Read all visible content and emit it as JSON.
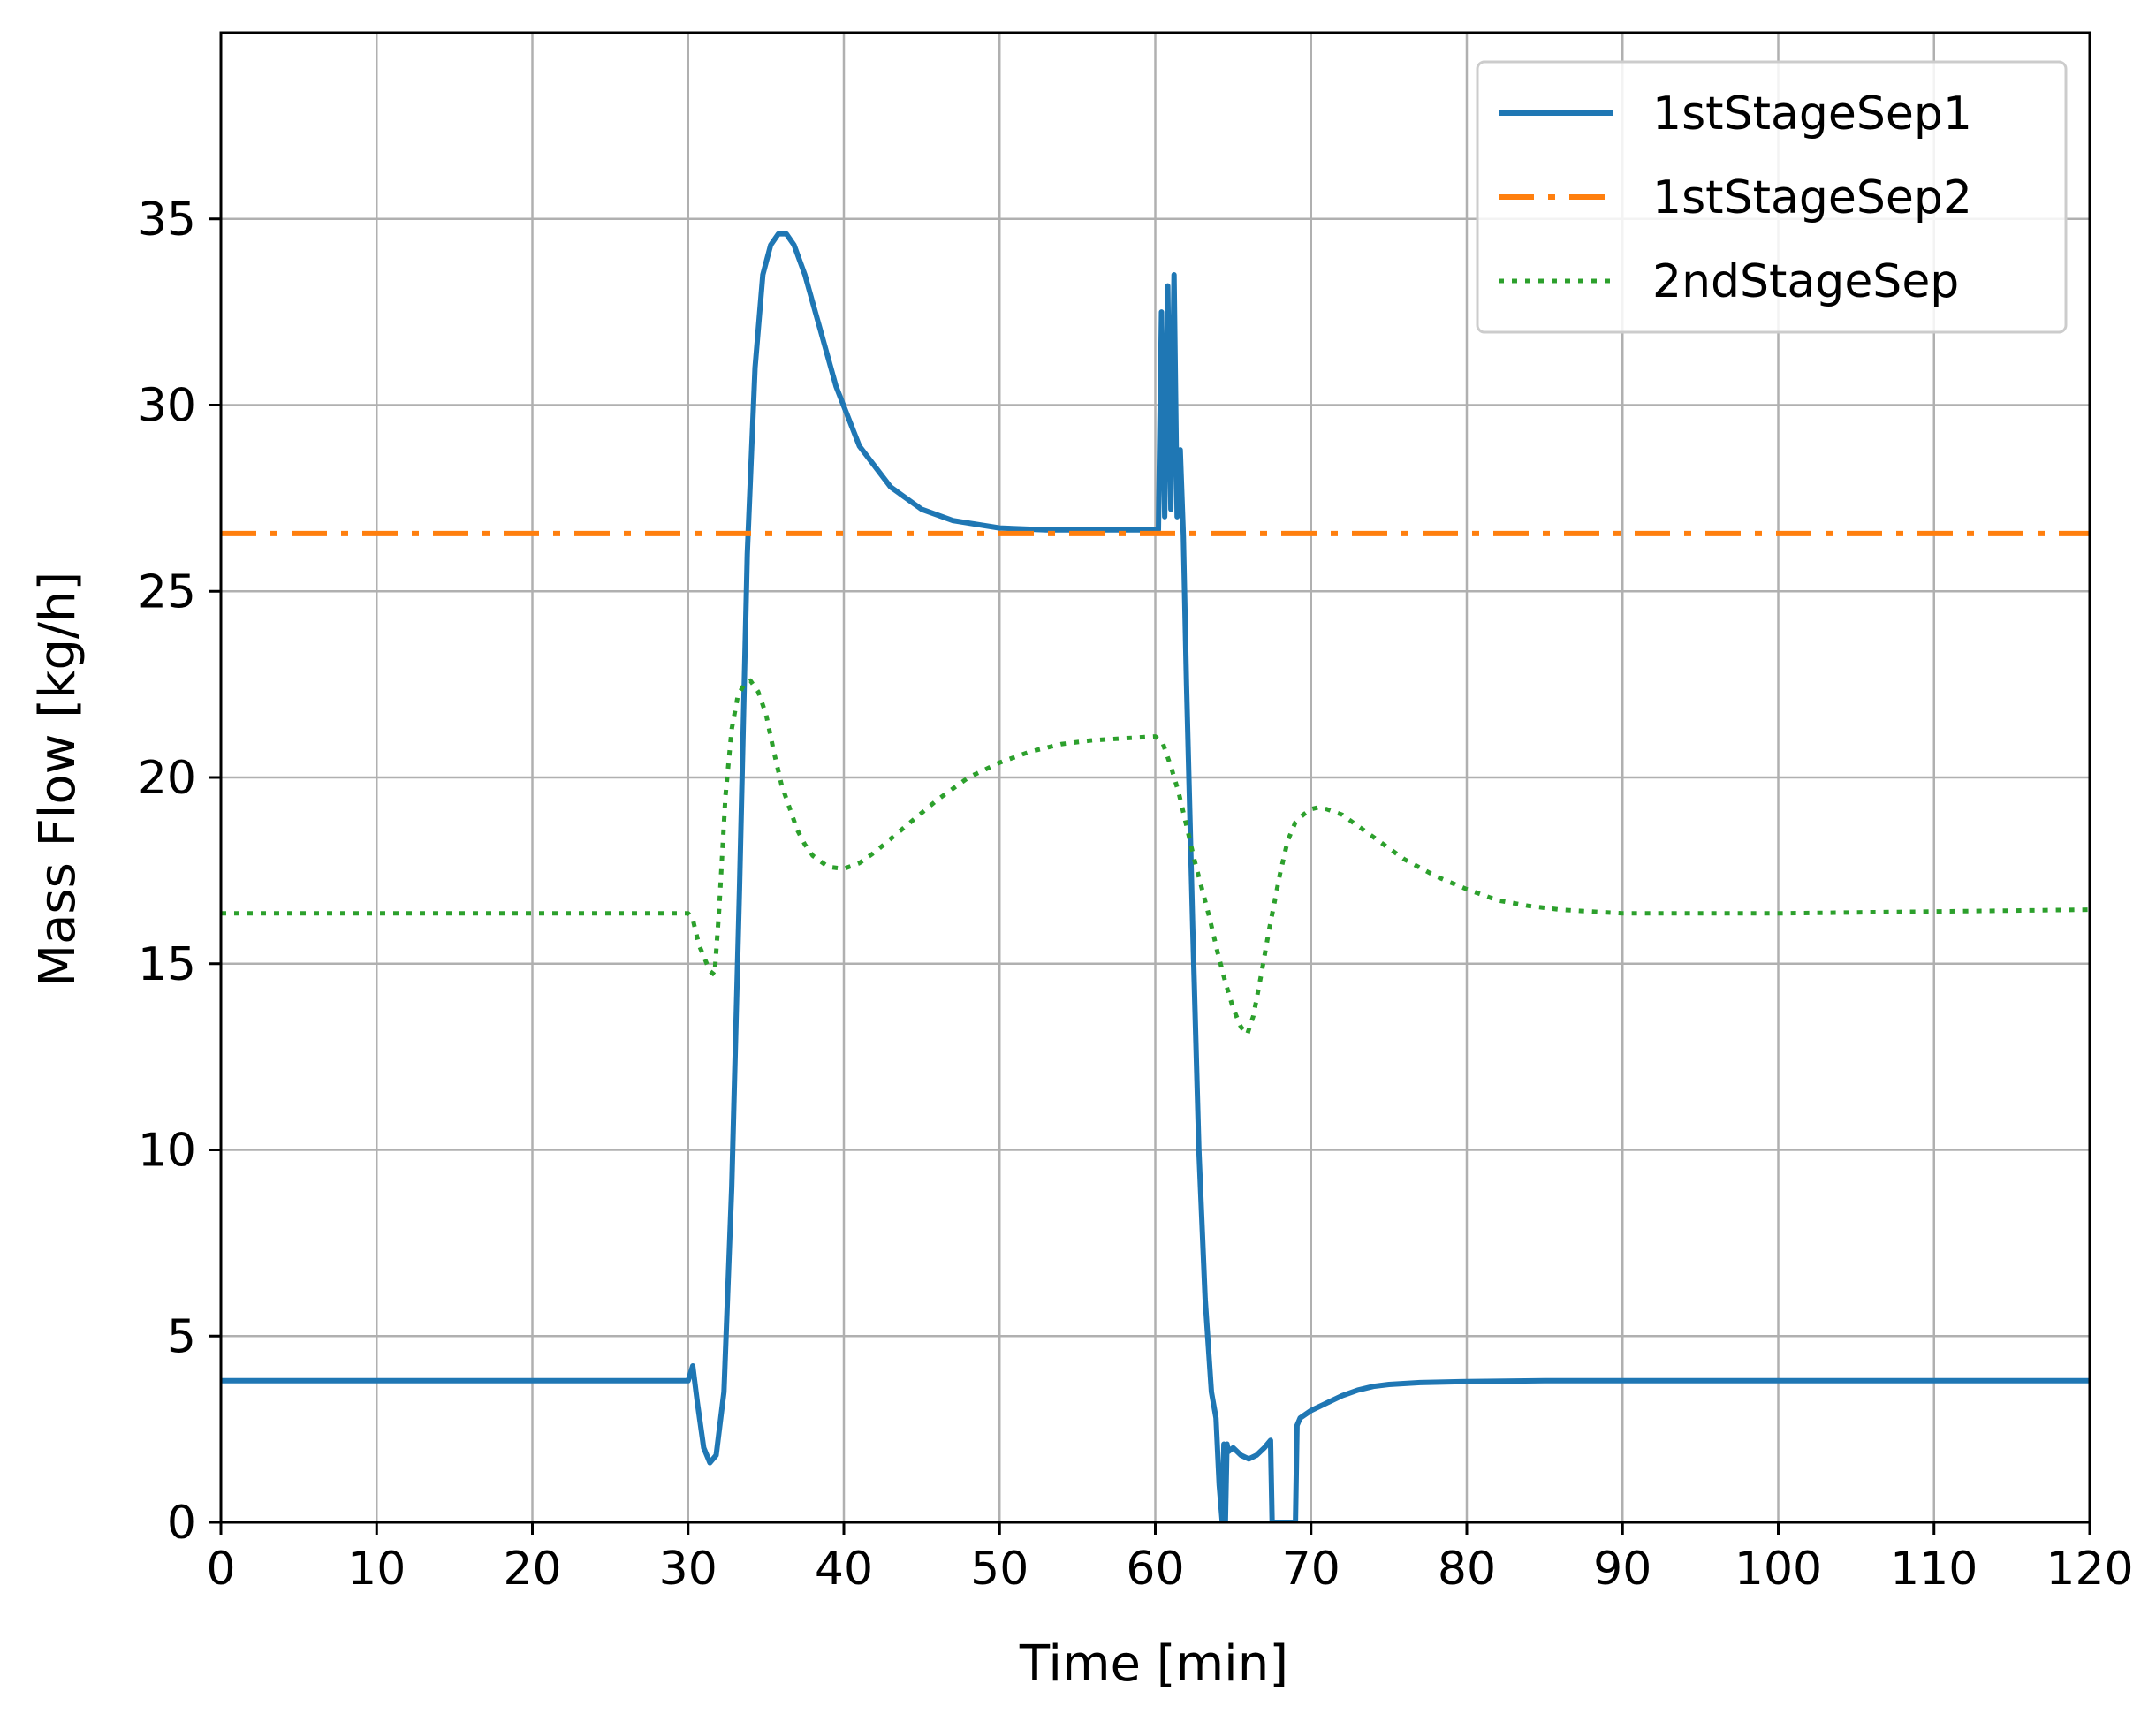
{
  "chart_data": {
    "type": "line",
    "xlabel": "Time [min]",
    "ylabel": "Mass Flow [kg/h]",
    "xlim": [
      0,
      120
    ],
    "ylim": [
      0,
      40
    ],
    "xticks": [
      0,
      10,
      20,
      30,
      40,
      50,
      60,
      70,
      80,
      90,
      100,
      110,
      120
    ],
    "yticks": [
      0,
      5,
      10,
      15,
      20,
      25,
      30,
      35
    ],
    "grid": true,
    "legend_position": "top-right",
    "series": [
      {
        "name": "1stStageSep1",
        "color": "#1f77b4",
        "linestyle": "solid",
        "x": [
          0,
          30,
          30.3,
          30.6,
          31,
          31.4,
          31.8,
          32.3,
          32.8,
          33.3,
          33.8,
          34.3,
          34.8,
          35.3,
          35.8,
          36.3,
          36.8,
          37.5,
          38.5,
          39.5,
          41,
          43,
          45,
          47,
          50,
          53,
          55,
          57,
          59,
          60.2,
          60.4,
          60.6,
          60.8,
          61,
          61.2,
          61.4,
          61.6,
          61.8,
          62,
          62.4,
          62.8,
          63.2,
          63.6,
          63.9,
          64.1,
          64.3,
          64.4,
          64.5,
          64.6,
          64.7,
          65,
          65.5,
          66,
          66.5,
          67,
          67.4,
          67.5,
          67.6,
          68.8,
          69,
          69.1,
          69.3,
          70,
          71,
          72,
          73,
          74,
          75,
          77,
          80,
          85,
          90,
          100,
          110,
          120
        ],
        "y": [
          3.8,
          3.8,
          4.2,
          3.2,
          2.0,
          1.6,
          1.8,
          3.5,
          9.0,
          17.0,
          26.0,
          31.0,
          33.5,
          34.3,
          34.6,
          34.6,
          34.3,
          33.5,
          32.0,
          30.5,
          28.9,
          27.8,
          27.2,
          26.9,
          26.7,
          26.65,
          26.65,
          26.65,
          26.65,
          26.65,
          32.5,
          27.0,
          33.2,
          27.2,
          33.5,
          27.0,
          28.8,
          26.5,
          22.5,
          16.0,
          10.0,
          6.0,
          3.5,
          2.8,
          1.0,
          0.0,
          2.1,
          0.0,
          2.1,
          1.9,
          2.0,
          1.8,
          1.7,
          1.8,
          2.0,
          2.2,
          0.0,
          0.0,
          0.0,
          0.0,
          2.6,
          2.8,
          3.0,
          3.2,
          3.4,
          3.55,
          3.65,
          3.7,
          3.75,
          3.78,
          3.8,
          3.8,
          3.8,
          3.8,
          3.8
        ]
      },
      {
        "name": "1stStageSep2",
        "color": "#ff7f0e",
        "linestyle": "dashdot",
        "x": [
          0,
          120
        ],
        "y": [
          26.55,
          26.55
        ]
      },
      {
        "name": "2ndStageSep",
        "color": "#2ca02c",
        "linestyle": "dotted",
        "x": [
          0,
          30,
          30.3,
          30.7,
          31,
          31.4,
          31.7,
          32,
          32.4,
          32.8,
          33.2,
          33.6,
          34,
          34.5,
          35,
          35.5,
          36,
          36.5,
          37,
          37.5,
          38,
          39,
          40,
          41,
          42,
          44,
          46,
          48,
          50,
          52,
          54,
          56,
          58,
          60,
          60.5,
          61,
          61.5,
          62,
          62.5,
          63,
          63.5,
          64,
          64.5,
          65,
          65.5,
          65.9,
          66.3,
          66.8,
          67.3,
          68,
          68.5,
          69,
          69.5,
          70,
          70.5,
          71,
          72,
          73,
          74,
          75,
          76,
          78,
          80,
          82,
          84,
          86,
          88,
          90,
          95,
          100,
          110,
          120
        ],
        "y": [
          16.35,
          16.35,
          16.2,
          15.5,
          15.2,
          14.8,
          14.7,
          16.5,
          19.5,
          21.3,
          22.2,
          22.5,
          22.6,
          22.3,
          21.7,
          20.7,
          19.8,
          19.2,
          18.6,
          18.2,
          17.9,
          17.6,
          17.55,
          17.7,
          18.0,
          18.7,
          19.4,
          20.0,
          20.4,
          20.7,
          20.9,
          21.0,
          21.05,
          21.1,
          20.9,
          20.3,
          19.6,
          18.7,
          17.8,
          17.0,
          16.2,
          15.3,
          14.5,
          13.8,
          13.3,
          13.1,
          13.6,
          14.7,
          15.9,
          17.4,
          18.3,
          18.8,
          19.0,
          19.15,
          19.2,
          19.15,
          19.0,
          18.7,
          18.4,
          18.1,
          17.8,
          17.35,
          17.0,
          16.7,
          16.55,
          16.45,
          16.4,
          16.35,
          16.35,
          16.35,
          16.4,
          16.45
        ]
      }
    ]
  }
}
